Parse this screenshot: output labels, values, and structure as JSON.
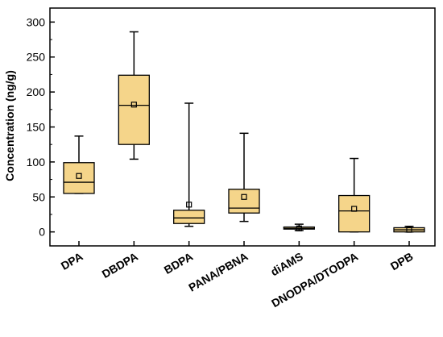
{
  "chart_data": {
    "type": "box",
    "ylabel": "Concentration (ng/g)",
    "xlabel": "",
    "ylim": [
      -20,
      320
    ],
    "yticks": [
      0,
      50,
      100,
      150,
      200,
      250,
      300
    ],
    "grid": false,
    "legend": "none",
    "box_color": "#f5d58a",
    "categories": [
      "DPA",
      "DBDPA",
      "BDPA",
      "PANA/PBNA",
      "diAMS",
      "DNODPA/DTODPA",
      "DPB"
    ],
    "boxes": [
      {
        "category": "DPA",
        "whisker_low": 55,
        "q1": 55,
        "median": 71,
        "q3": 99,
        "whisker_high": 137,
        "mean": 80
      },
      {
        "category": "DBDPA",
        "whisker_low": 104,
        "q1": 125,
        "median": 181,
        "q3": 224,
        "whisker_high": 286,
        "mean": 182
      },
      {
        "category": "BDPA",
        "whisker_low": 8,
        "q1": 12,
        "median": 20,
        "q3": 31,
        "whisker_high": 184,
        "mean": 39
      },
      {
        "category": "PANA/PBNA",
        "whisker_low": 15,
        "q1": 27,
        "median": 34,
        "q3": 61,
        "whisker_high": 141,
        "mean": 50
      },
      {
        "category": "diAMS",
        "whisker_low": 2,
        "q1": 4,
        "median": 5,
        "q3": 7,
        "whisker_high": 11,
        "mean": 5
      },
      {
        "category": "DNODPA/DTODPA",
        "whisker_low": 0,
        "q1": 0,
        "median": 30,
        "q3": 52,
        "whisker_high": 105,
        "mean": 33
      },
      {
        "category": "DPB",
        "whisker_low": 0,
        "q1": 0,
        "median": 3,
        "q3": 6,
        "whisker_high": 8,
        "mean": 3
      }
    ]
  }
}
